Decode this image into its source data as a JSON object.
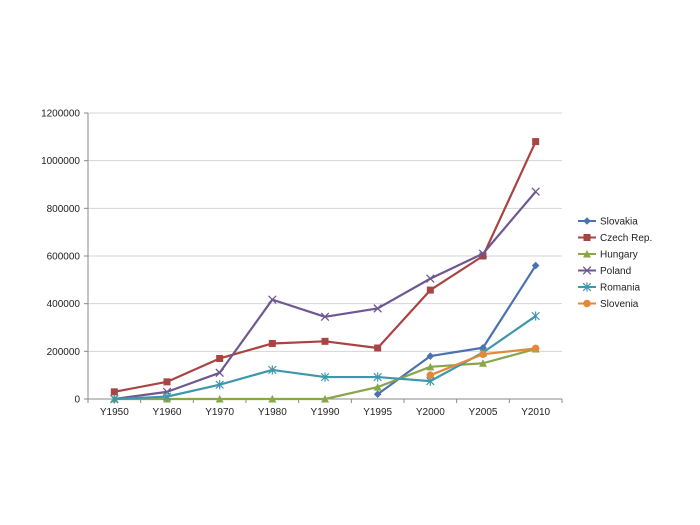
{
  "chart_data": {
    "type": "line",
    "categories": [
      "Y1950",
      "Y1960",
      "Y1970",
      "Y1980",
      "Y1990",
      "Y1995",
      "Y2000",
      "Y2005",
      "Y2010"
    ],
    "ylim": [
      0,
      1200000
    ],
    "yticks": [
      "0",
      "200000",
      "400000",
      "600000",
      "800000",
      "1000000",
      "1200000"
    ],
    "grid": true,
    "legend_position": "right",
    "series": [
      {
        "name": "Slovakia",
        "color": "#4a72b0",
        "marker": "diamond",
        "values": [
          null,
          null,
          null,
          null,
          null,
          20000,
          180000,
          215000,
          560000
        ]
      },
      {
        "name": "Czech Rep.",
        "color": "#a84442",
        "marker": "square",
        "values": [
          30000,
          72000,
          170000,
          233000,
          242000,
          214000,
          457000,
          600000,
          1080000
        ]
      },
      {
        "name": "Hungary",
        "color": "#8aa54a",
        "marker": "triangle",
        "values": [
          0,
          0,
          0,
          0,
          0,
          50000,
          135000,
          150000,
          210000
        ]
      },
      {
        "name": "Poland",
        "color": "#6f5792",
        "marker": "x",
        "values": [
          0,
          30000,
          110000,
          417000,
          345000,
          380000,
          505000,
          610000,
          870000
        ]
      },
      {
        "name": "Romania",
        "color": "#3f97ab",
        "marker": "star",
        "values": [
          0,
          10000,
          60000,
          122000,
          92000,
          92000,
          75000,
          195000,
          348000
        ]
      },
      {
        "name": "Slovenia",
        "color": "#e08a3c",
        "marker": "circle",
        "values": [
          null,
          null,
          null,
          null,
          null,
          null,
          100000,
          188000,
          212000
        ]
      }
    ]
  }
}
